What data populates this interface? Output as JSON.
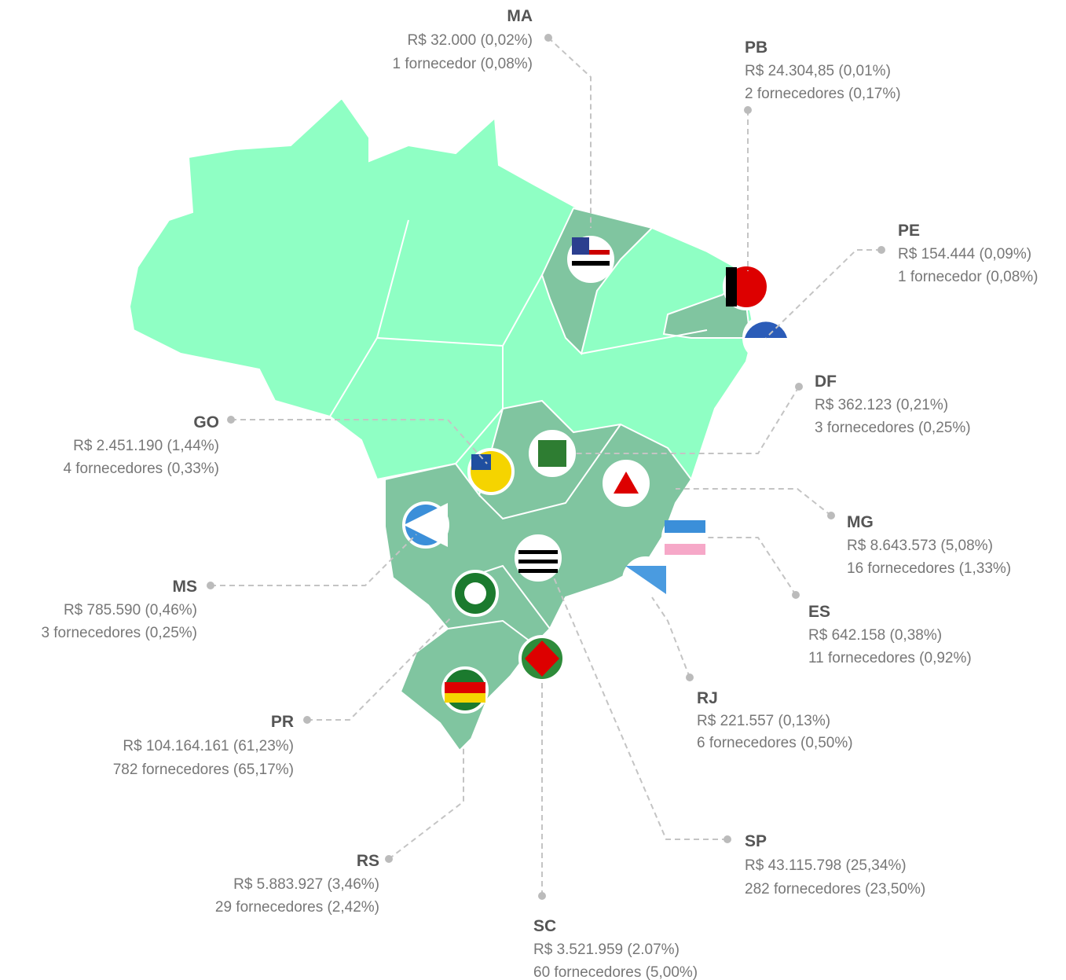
{
  "states": [
    {
      "code": "MA",
      "amount": "R$ 32.000 (0,02%)",
      "suppliers": "1 fornecedor (0,08%)"
    },
    {
      "code": "PB",
      "amount": "R$ 24.304,85 (0,01%)",
      "suppliers": "2 fornecedores (0,17%)"
    },
    {
      "code": "PE",
      "amount": "R$ 154.444 (0,09%)",
      "suppliers": "1 fornecedor (0,08%)"
    },
    {
      "code": "DF",
      "amount": "R$ 362.123 (0,21%)",
      "suppliers": "3 fornecedores (0,25%)"
    },
    {
      "code": "GO",
      "amount": "R$ 2.451.190 (1,44%)",
      "suppliers": "4 fornecedores (0,33%)"
    },
    {
      "code": "MG",
      "amount": "R$ 8.643.573 (5,08%)",
      "suppliers": "16 fornecedores (1,33%)"
    },
    {
      "code": "MS",
      "amount": "R$ 785.590 (0,46%)",
      "suppliers": "3 fornecedores (0,25%)"
    },
    {
      "code": "ES",
      "amount": "R$ 642.158 (0,38%)",
      "suppliers": "11 fornecedores (0,92%)"
    },
    {
      "code": "RJ",
      "amount": "R$ 221.557 (0,13%)",
      "suppliers": "6 fornecedores (0,50%)"
    },
    {
      "code": "PR",
      "amount": "R$ 104.164.161 (61,23%)",
      "suppliers": "782 fornecedores (65,17%)"
    },
    {
      "code": "SP",
      "amount": "R$ 43.115.798 (25,34%)",
      "suppliers": "282 fornecedores (23,50%)"
    },
    {
      "code": "RS",
      "amount": "R$ 5.883.927 (3,46%)",
      "suppliers": "29 fornecedores (2,42%)"
    },
    {
      "code": "SC",
      "amount": "R$ 3.521.959 (2.07%)",
      "suppliers": "60 fornecedores (5,00%)"
    }
  ]
}
